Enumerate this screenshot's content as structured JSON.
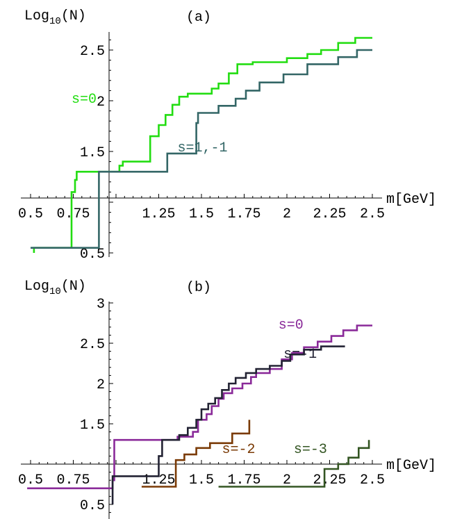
{
  "chart_data": [
    {
      "panel": "(a)",
      "type": "line",
      "ylabel_base": "Log",
      "ylabel_sub": "10",
      "ylabel_rest": "(N)",
      "xlabel": "m[GeV]",
      "xlim": [
        0.5,
        2.5
      ],
      "ylim": [
        0.5,
        2.7
      ],
      "xticks": [
        0.5,
        0.75,
        1.25,
        1.5,
        1.75,
        2,
        2.25,
        2.5
      ],
      "xtick_labels": [
        "0.5",
        "0.75",
        "1.25",
        "1.5",
        "1.75",
        "2",
        "2.25",
        "2.5"
      ],
      "yticks": [
        0.5,
        1.5,
        2,
        2.5
      ],
      "ytick_labels": [
        "0.5",
        "1.5",
        "2",
        "2.5"
      ],
      "series": [
        {
          "name": "s=0",
          "color": "#22dd11",
          "label_at": [
            0.74,
            1.98
          ],
          "points": [
            [
              0.52,
              0.5
            ],
            [
              0.52,
              0.55
            ],
            [
              0.52,
              0.55
            ],
            [
              0.74,
              0.55
            ],
            [
              0.74,
              1.1
            ],
            [
              0.76,
              1.1
            ],
            [
              0.76,
              1.22
            ],
            [
              0.77,
              1.22
            ],
            [
              0.77,
              1.3
            ],
            [
              1.02,
              1.3
            ],
            [
              1.02,
              1.36
            ],
            [
              1.04,
              1.36
            ],
            [
              1.04,
              1.4
            ],
            [
              1.2,
              1.4
            ],
            [
              1.2,
              1.65
            ],
            [
              1.25,
              1.65
            ],
            [
              1.25,
              1.76
            ],
            [
              1.29,
              1.76
            ],
            [
              1.29,
              1.86
            ],
            [
              1.33,
              1.86
            ],
            [
              1.33,
              1.96
            ],
            [
              1.37,
              1.96
            ],
            [
              1.37,
              2.04
            ],
            [
              1.42,
              2.04
            ],
            [
              1.42,
              2.07
            ],
            [
              1.56,
              2.07
            ],
            [
              1.56,
              2.12
            ],
            [
              1.6,
              2.12
            ],
            [
              1.6,
              2.17
            ],
            [
              1.66,
              2.17
            ],
            [
              1.66,
              2.27
            ],
            [
              1.71,
              2.27
            ],
            [
              1.71,
              2.36
            ],
            [
              1.8,
              2.36
            ],
            [
              1.8,
              2.38
            ],
            [
              2.0,
              2.38
            ],
            [
              2.0,
              2.42
            ],
            [
              2.12,
              2.42
            ],
            [
              2.12,
              2.46
            ],
            [
              2.2,
              2.46
            ],
            [
              2.2,
              2.5
            ],
            [
              2.3,
              2.5
            ],
            [
              2.3,
              2.57
            ],
            [
              2.4,
              2.57
            ],
            [
              2.4,
              2.62
            ],
            [
              2.5,
              2.62
            ]
          ]
        },
        {
          "name": "s=1,-1",
          "color": "#336666",
          "label_at": [
            1.36,
            1.5
          ],
          "points": [
            [
              0.5,
              0.55
            ],
            [
              0.9,
              0.55
            ],
            [
              0.9,
              1.3
            ],
            [
              1.3,
              1.3
            ],
            [
              1.3,
              1.48
            ],
            [
              1.47,
              1.48
            ],
            [
              1.47,
              1.78
            ],
            [
              1.48,
              1.78
            ],
            [
              1.48,
              1.88
            ],
            [
              1.6,
              1.88
            ],
            [
              1.6,
              1.95
            ],
            [
              1.7,
              1.95
            ],
            [
              1.7,
              2.02
            ],
            [
              1.76,
              2.02
            ],
            [
              1.76,
              2.1
            ],
            [
              1.84,
              2.1
            ],
            [
              1.84,
              2.18
            ],
            [
              1.98,
              2.18
            ],
            [
              1.98,
              2.26
            ],
            [
              2.12,
              2.26
            ],
            [
              2.12,
              2.36
            ],
            [
              2.3,
              2.36
            ],
            [
              2.3,
              2.43
            ],
            [
              2.41,
              2.43
            ],
            [
              2.41,
              2.5
            ],
            [
              2.5,
              2.5
            ]
          ]
        }
      ]
    },
    {
      "panel": "(b)",
      "type": "line",
      "ylabel_base": "Log",
      "ylabel_sub": "10",
      "ylabel_rest": "(N)",
      "xlabel": "m[GeV]",
      "xlim": [
        0.5,
        2.5
      ],
      "ylim": [
        0.5,
        3.0
      ],
      "xticks": [
        0.5,
        0.75,
        1.25,
        1.5,
        1.75,
        2,
        2.25,
        2.5
      ],
      "xtick_labels": [
        "0.5",
        "0.75",
        "1.25",
        "1.5",
        "1.75",
        "2",
        "2.25",
        "2.5"
      ],
      "yticks": [
        0.5,
        1.5,
        2,
        2.5,
        3
      ],
      "ytick_labels": [
        "0.5",
        "1.5",
        "2",
        "2.5",
        "3"
      ],
      "series": [
        {
          "name": "s=0",
          "color": "#8a2a99",
          "label_at": [
            1.95,
            2.68
          ],
          "points": [
            [
              0.48,
              0.7
            ],
            [
              0.98,
              0.7
            ],
            [
              0.98,
              0.8
            ],
            [
              0.99,
              0.8
            ],
            [
              0.99,
              1.3
            ],
            [
              1.36,
              1.3
            ],
            [
              1.36,
              1.34
            ],
            [
              1.45,
              1.34
            ],
            [
              1.45,
              1.4
            ],
            [
              1.48,
              1.4
            ],
            [
              1.48,
              1.55
            ],
            [
              1.53,
              1.55
            ],
            [
              1.53,
              1.62
            ],
            [
              1.56,
              1.62
            ],
            [
              1.56,
              1.72
            ],
            [
              1.6,
              1.72
            ],
            [
              1.6,
              1.81
            ],
            [
              1.63,
              1.81
            ],
            [
              1.63,
              1.88
            ],
            [
              1.68,
              1.88
            ],
            [
              1.68,
              1.94
            ],
            [
              1.74,
              1.94
            ],
            [
              1.74,
              2.0
            ],
            [
              1.79,
              2.0
            ],
            [
              1.79,
              2.08
            ],
            [
              1.82,
              2.08
            ],
            [
              1.82,
              2.13
            ],
            [
              1.9,
              2.13
            ],
            [
              1.9,
              2.18
            ],
            [
              1.97,
              2.18
            ],
            [
              1.97,
              2.3
            ],
            [
              2.03,
              2.3
            ],
            [
              2.03,
              2.38
            ],
            [
              2.1,
              2.38
            ],
            [
              2.1,
              2.45
            ],
            [
              2.18,
              2.45
            ],
            [
              2.18,
              2.52
            ],
            [
              2.26,
              2.52
            ],
            [
              2.26,
              2.59
            ],
            [
              2.33,
              2.59
            ],
            [
              2.33,
              2.66
            ],
            [
              2.41,
              2.66
            ],
            [
              2.41,
              2.72
            ],
            [
              2.5,
              2.72
            ]
          ]
        },
        {
          "name": "s=-1",
          "color": "#222233",
          "label_at": [
            1.98,
            2.32
          ],
          "points": [
            [
              0.98,
              0.5
            ],
            [
              0.98,
              0.85
            ],
            [
              1.25,
              0.85
            ],
            [
              1.25,
              1.1
            ],
            [
              1.27,
              1.1
            ],
            [
              1.27,
              1.3
            ],
            [
              1.37,
              1.3
            ],
            [
              1.37,
              1.36
            ],
            [
              1.42,
              1.36
            ],
            [
              1.42,
              1.45
            ],
            [
              1.47,
              1.45
            ],
            [
              1.47,
              1.55
            ],
            [
              1.5,
              1.55
            ],
            [
              1.5,
              1.68
            ],
            [
              1.54,
              1.68
            ],
            [
              1.54,
              1.75
            ],
            [
              1.58,
              1.75
            ],
            [
              1.58,
              1.82
            ],
            [
              1.62,
              1.82
            ],
            [
              1.62,
              1.92
            ],
            [
              1.66,
              1.92
            ],
            [
              1.66,
              2.0
            ],
            [
              1.7,
              2.0
            ],
            [
              1.7,
              2.07
            ],
            [
              1.76,
              2.07
            ],
            [
              1.76,
              2.13
            ],
            [
              1.82,
              2.13
            ],
            [
              1.82,
              2.18
            ],
            [
              1.9,
              2.18
            ],
            [
              1.9,
              2.22
            ],
            [
              1.97,
              2.22
            ],
            [
              1.97,
              2.28
            ],
            [
              2.02,
              2.28
            ],
            [
              2.02,
              2.36
            ],
            [
              2.1,
              2.36
            ],
            [
              2.1,
              2.42
            ],
            [
              2.2,
              2.42
            ],
            [
              2.2,
              2.46
            ],
            [
              2.34,
              2.46
            ]
          ]
        },
        {
          "name": "s=-2",
          "color": "#7a3a05",
          "label_at": [
            1.62,
            1.14
          ],
          "points": [
            [
              1.15,
              0.72
            ],
            [
              1.35,
              0.72
            ],
            [
              1.35,
              1.05
            ],
            [
              1.4,
              1.05
            ],
            [
              1.4,
              1.12
            ],
            [
              1.47,
              1.12
            ],
            [
              1.47,
              1.2
            ],
            [
              1.55,
              1.2
            ],
            [
              1.55,
              1.26
            ],
            [
              1.68,
              1.26
            ],
            [
              1.68,
              1.38
            ],
            [
              1.78,
              1.38
            ],
            [
              1.78,
              1.55
            ]
          ]
        },
        {
          "name": "s=-3",
          "color": "#335522",
          "label_at": [
            2.04,
            1.14
          ],
          "points": [
            [
              1.6,
              0.72
            ],
            [
              2.22,
              0.72
            ],
            [
              2.22,
              0.94
            ],
            [
              2.3,
              0.94
            ],
            [
              2.3,
              1.0
            ],
            [
              2.36,
              1.0
            ],
            [
              2.36,
              1.08
            ],
            [
              2.42,
              1.08
            ],
            [
              2.42,
              1.2
            ],
            [
              2.48,
              1.2
            ],
            [
              2.48,
              1.3
            ]
          ]
        }
      ]
    }
  ]
}
